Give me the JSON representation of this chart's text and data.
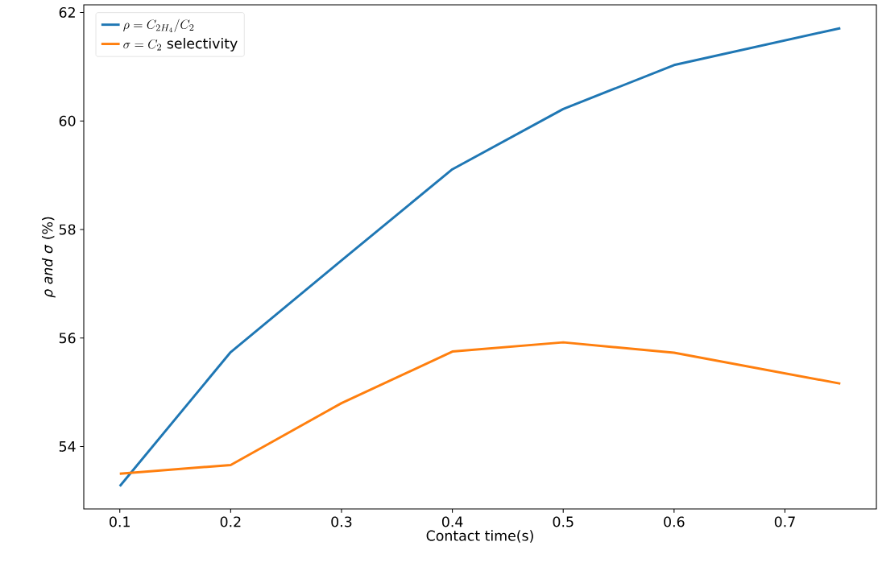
{
  "chart_data": {
    "type": "line",
    "xlabel": "Contact time(s)",
    "ylabel": "*ρ and σ* (%)",
    "x": [
      0.1,
      0.2,
      0.3,
      0.4,
      0.5,
      0.6,
      0.75
    ],
    "series": [
      {
        "name": "\\rho = C_{2H_4}/C_2",
        "color": "#1f77b4",
        "values": [
          53.27,
          55.74,
          57.43,
          59.11,
          60.22,
          61.03,
          61.71
        ]
      },
      {
        "name": "\\sigma = C_2\\ \\mathrm{selectivity}",
        "color": "#ff7f0e",
        "values": [
          53.5,
          53.66,
          54.8,
          55.75,
          55.92,
          55.73,
          55.16
        ]
      }
    ],
    "xlim": [
      0.0675,
      0.7825
    ],
    "ylim": [
      52.85,
      62.14
    ],
    "xticks": [
      0.1,
      0.2,
      0.3,
      0.4,
      0.5,
      0.6,
      0.7
    ],
    "yticks": [
      54,
      56,
      58,
      60,
      62
    ],
    "legend": "top left"
  }
}
